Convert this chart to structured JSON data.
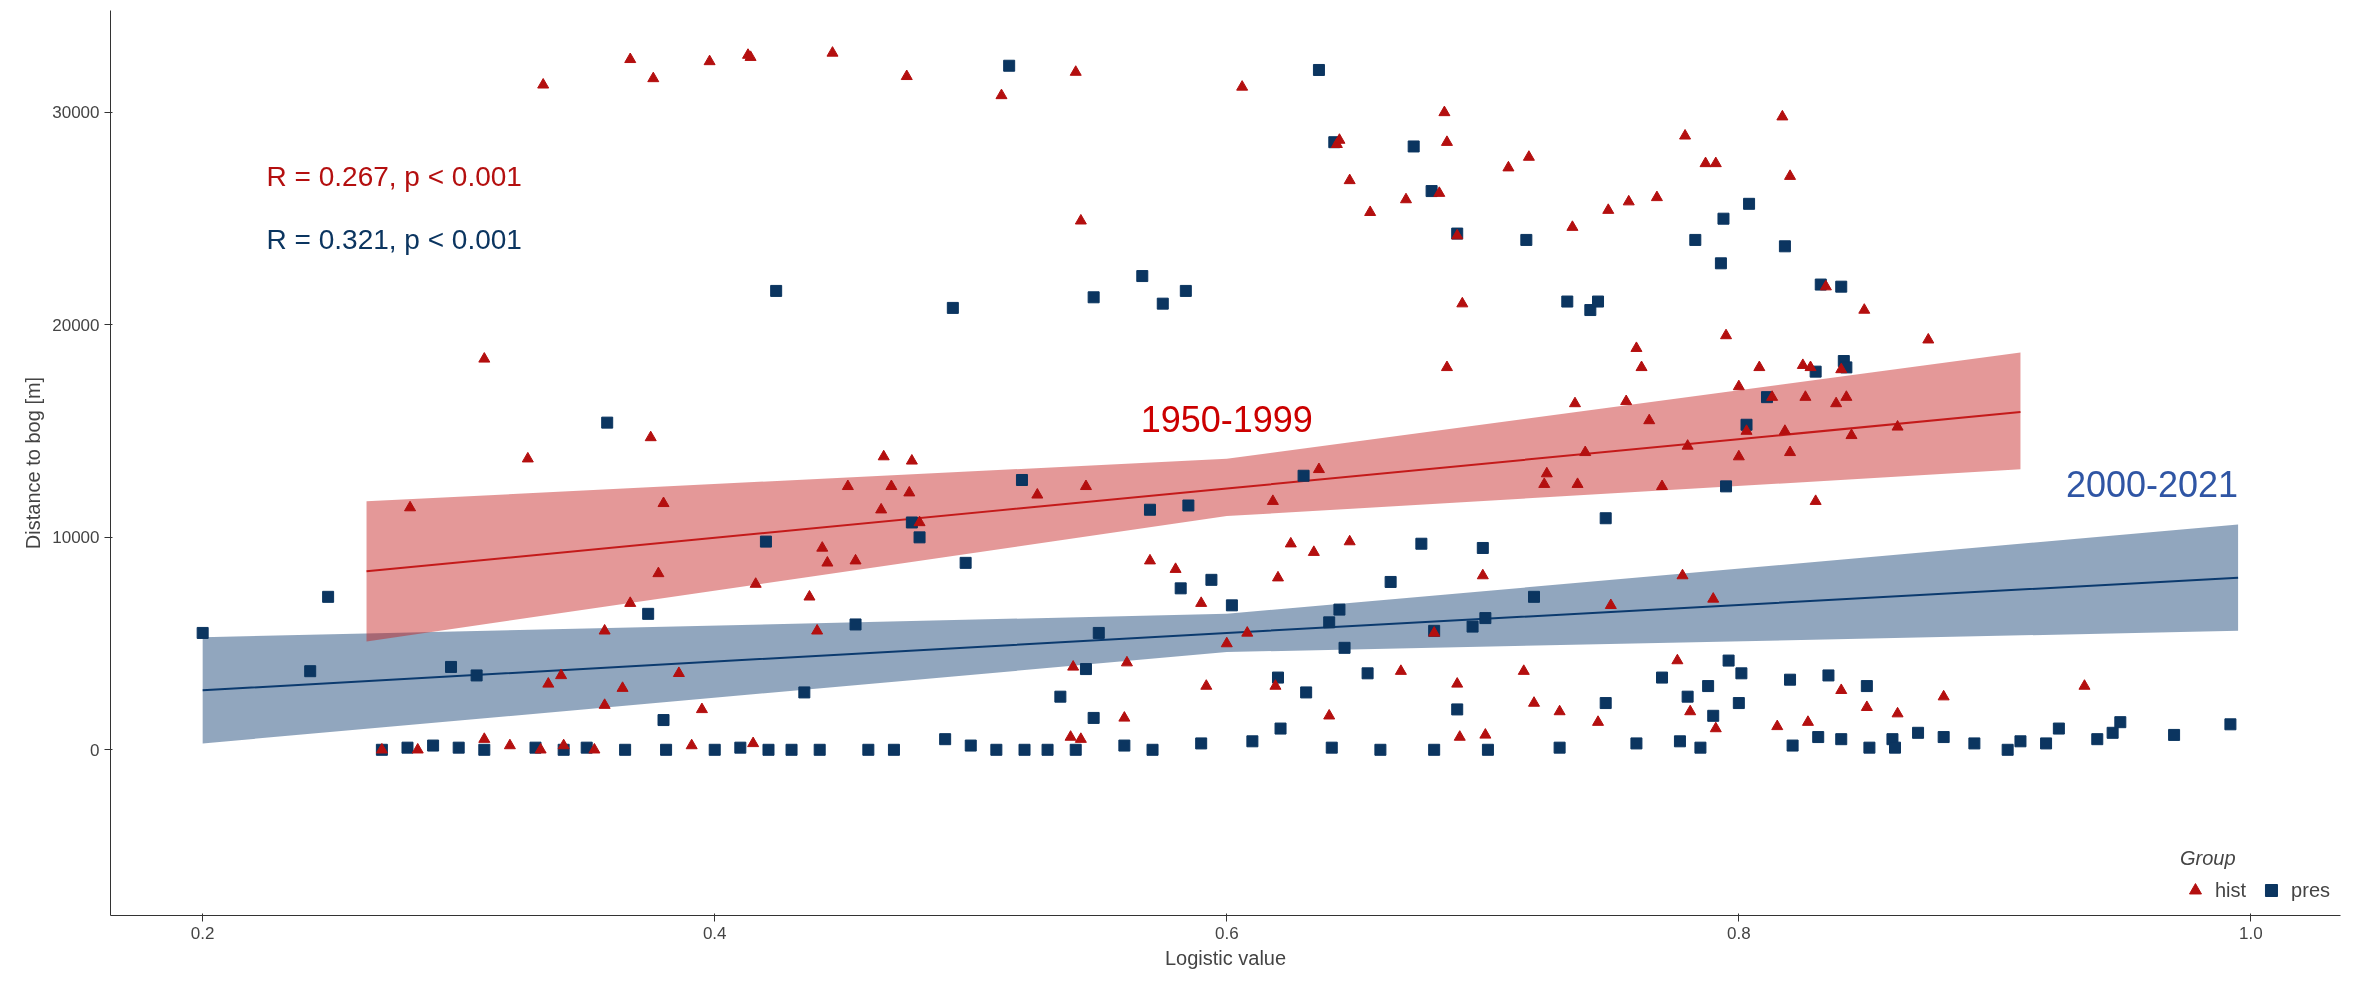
{
  "chart_data": {
    "type": "scatter",
    "xlabel": "Logistic value",
    "ylabel": "Distance to bog [m]",
    "legend_title": "Group",
    "legend": "bottom right",
    "grid": false,
    "xlim": [
      0.164,
      1.035
    ],
    "ylim": [
      -7800,
      34800
    ],
    "xticks": [
      0.2,
      0.4,
      0.6,
      0.8,
      {
        "value": 1.0,
        "label": "1.0"
      }
    ],
    "yticks": [
      0,
      10000,
      20000,
      30000
    ],
    "annotations": [
      "R = 0.267, p < 0.001",
      "R = 0.321, p < 0.001",
      "1950-1999",
      "2000-2021"
    ],
    "series": [
      {
        "name": "hist",
        "marker": "triangle",
        "color": "#b40f0f",
        "x": [
          0.333,
          0.367,
          0.376,
          0.398,
          0.413,
          0.414,
          0.446,
          0.475,
          0.512,
          0.541,
          0.543,
          0.606,
          0.643,
          0.644,
          0.648,
          0.656,
          0.67,
          0.683,
          0.685,
          0.686,
          0.69,
          0.692,
          0.686,
          0.71,
          0.718,
          0.735,
          0.749,
          0.757,
          0.768,
          0.779,
          0.787,
          0.791,
          0.817,
          0.82,
          0.808,
          0.813,
          0.828,
          0.838,
          0.849,
          0.842,
          0.862,
          0.874,
          0.76,
          0.762,
          0.756,
          0.736,
          0.78,
          0.8,
          0.82,
          0.8,
          0.826,
          0.825,
          0.803,
          0.818,
          0.83,
          0.84,
          0.834,
          0.844,
          0.795,
          0.765,
          0.74,
          0.725,
          0.31,
          0.327,
          0.375,
          0.38,
          0.281,
          0.378,
          0.367,
          0.357,
          0.31,
          0.395,
          0.416,
          0.442,
          0.444,
          0.437,
          0.452,
          0.466,
          0.476,
          0.477,
          0.469,
          0.465,
          0.455,
          0.44,
          0.48,
          0.526,
          0.57,
          0.58,
          0.59,
          0.6,
          0.618,
          0.62,
          0.634,
          0.648,
          0.608,
          0.625,
          0.636,
          0.56,
          0.619,
          0.668,
          0.681,
          0.7,
          0.716,
          0.724,
          0.737,
          0.75,
          0.77,
          0.778,
          0.79,
          0.54,
          0.561,
          0.545,
          0.284,
          0.27,
          0.332,
          0.353,
          0.341,
          0.357,
          0.364,
          0.386,
          0.391,
          0.32,
          0.335,
          0.34,
          0.415,
          0.539,
          0.543,
          0.592,
          0.64,
          0.69,
          0.72,
          0.73,
          0.781,
          0.791,
          0.815,
          0.84,
          0.88,
          0.935,
          0.862,
          0.85,
          0.776,
          0.691,
          0.745,
          0.827,
          0.701
        ],
        "values": [
          31300,
          32500,
          31600,
          32400,
          32700,
          32600,
          32800,
          31700,
          30800,
          31900,
          24900,
          31200,
          28500,
          28700,
          26800,
          25300,
          25900,
          26200,
          30000,
          28600,
          24200,
          21000,
          18000,
          27400,
          27900,
          24600,
          25400,
          25800,
          26000,
          28900,
          27600,
          27600,
          29800,
          27000,
          18000,
          16600,
          18000,
          16300,
          20700,
          16600,
          15200,
          19300,
          18900,
          18000,
          16400,
          16300,
          14300,
          13800,
          14000,
          17100,
          16600,
          18100,
          15000,
          15000,
          11700,
          17900,
          21800,
          14800,
          19500,
          15500,
          14000,
          13000,
          18400,
          13700,
          14700,
          11600,
          11400,
          8300,
          6900,
          5600,
          500,
          1900,
          7800,
          9500,
          8800,
          7200,
          12400,
          13800,
          12100,
          13600,
          12400,
          11300,
          8900,
          5600,
          10700,
          12000,
          8900,
          8500,
          6900,
          5000,
          11700,
          8100,
          9300,
          9800,
          5500,
          9700,
          13200,
          1500,
          3000,
          3700,
          5500,
          8200,
          3700,
          12500,
          12500,
          6800,
          12400,
          8200,
          7100,
          3900,
          4100,
          12400,
          0,
          0,
          0,
          0,
          200,
          2100,
          2900,
          3600,
          200,
          200,
          3100,
          3500,
          300,
          600,
          500,
          3000,
          1600,
          3100,
          2200,
          1800,
          1800,
          1000,
          1100,
          2800,
          2500,
          3000,
          1700,
          2000,
          4200,
          600,
          1300,
          1300,
          700
        ]
      },
      {
        "name": "pres",
        "marker": "square",
        "color": "#0b3560",
        "x": [
          0.2,
          0.242,
          0.249,
          0.297,
          0.307,
          0.358,
          0.374,
          0.38,
          0.424,
          0.42,
          0.435,
          0.455,
          0.493,
          0.515,
          0.548,
          0.567,
          0.575,
          0.584,
          0.636,
          0.642,
          0.673,
          0.68,
          0.69,
          0.717,
          0.733,
          0.742,
          0.745,
          0.783,
          0.793,
          0.794,
          0.804,
          0.818,
          0.832,
          0.84,
          0.841,
          0.842,
          0.795,
          0.803,
          0.83,
          0.811,
          0.748,
          0.7,
          0.676,
          0.63,
          0.585,
          0.57,
          0.52,
          0.545,
          0.55,
          0.498,
          0.477,
          0.48,
          0.535,
          0.548,
          0.582,
          0.594,
          0.602,
          0.644,
          0.681,
          0.664,
          0.64,
          0.62,
          0.631,
          0.646,
          0.655,
          0.621,
          0.69,
          0.696,
          0.701,
          0.72,
          0.748,
          0.77,
          0.777,
          0.788,
          0.796,
          0.8,
          0.801,
          0.82,
          0.835,
          0.85,
          0.79,
          0.78,
          0.84,
          0.831,
          0.86,
          0.861,
          0.87,
          0.88,
          0.892,
          0.91,
          0.925,
          0.946,
          0.949,
          0.992,
          0.97,
          0.27,
          0.28,
          0.29,
          0.3,
          0.31,
          0.33,
          0.341,
          0.35,
          0.365,
          0.381,
          0.4,
          0.41,
          0.421,
          0.43,
          0.441,
          0.46,
          0.47,
          0.49,
          0.5,
          0.51,
          0.521,
          0.53,
          0.541,
          0.56,
          0.571,
          0.59,
          0.61,
          0.641,
          0.66,
          0.681,
          0.702,
          0.73,
          0.76,
          0.785,
          0.821,
          0.851,
          0.905,
          0.92,
          0.94
        ],
        "values": [
          5500,
          3700,
          7200,
          3900,
          3500,
          15400,
          6400,
          1400,
          21600,
          9800,
          2700,
          5900,
          20800,
          32200,
          21300,
          22300,
          21000,
          21600,
          32000,
          28600,
          28400,
          26300,
          24300,
          24000,
          21100,
          20700,
          21100,
          24000,
          22900,
          25000,
          25700,
          23700,
          21900,
          21800,
          18300,
          18000,
          12400,
          15300,
          17800,
          16600,
          10900,
          9500,
          9700,
          12900,
          11500,
          11300,
          12700,
          3800,
          5500,
          8800,
          10700,
          10000,
          2500,
          1500,
          7600,
          8000,
          6800,
          6600,
          5600,
          7900,
          6000,
          3400,
          2700,
          4800,
          3600,
          1000,
          1900,
          5800,
          6200,
          7200,
          2200,
          3400,
          400,
          3000,
          4200,
          2200,
          3600,
          3300,
          3500,
          3000,
          1600,
          2500,
          500,
          600,
          500,
          100,
          800,
          600,
          300,
          400,
          1000,
          800,
          1300,
          1200,
          700,
          0,
          100,
          200,
          100,
          0,
          100,
          0,
          100,
          0,
          0,
          0,
          100,
          0,
          0,
          0,
          0,
          0,
          500,
          200,
          0,
          0,
          0,
          0,
          200,
          0,
          300,
          400,
          100,
          0,
          0,
          0,
          100,
          300,
          100,
          200,
          100,
          0,
          300,
          500
        ]
      },
      {
        "type": "line",
        "color": "#c41a1a",
        "x": [
          0.264,
          0.6,
          0.91
        ],
        "values": [
          8400,
          12300,
          15900
        ],
        "lower": [
          5100,
          11000,
          13200
        ],
        "upper": [
          11700,
          13700,
          18700
        ]
      },
      {
        "type": "line",
        "color": "#0b3a6e",
        "x": [
          0.2,
          0.6,
          0.995
        ],
        "values": [
          2800,
          5500,
          8100
        ],
        "lower": [
          300,
          4600,
          5600
        ],
        "upper": [
          5300,
          6400,
          10600
        ]
      }
    ]
  }
}
